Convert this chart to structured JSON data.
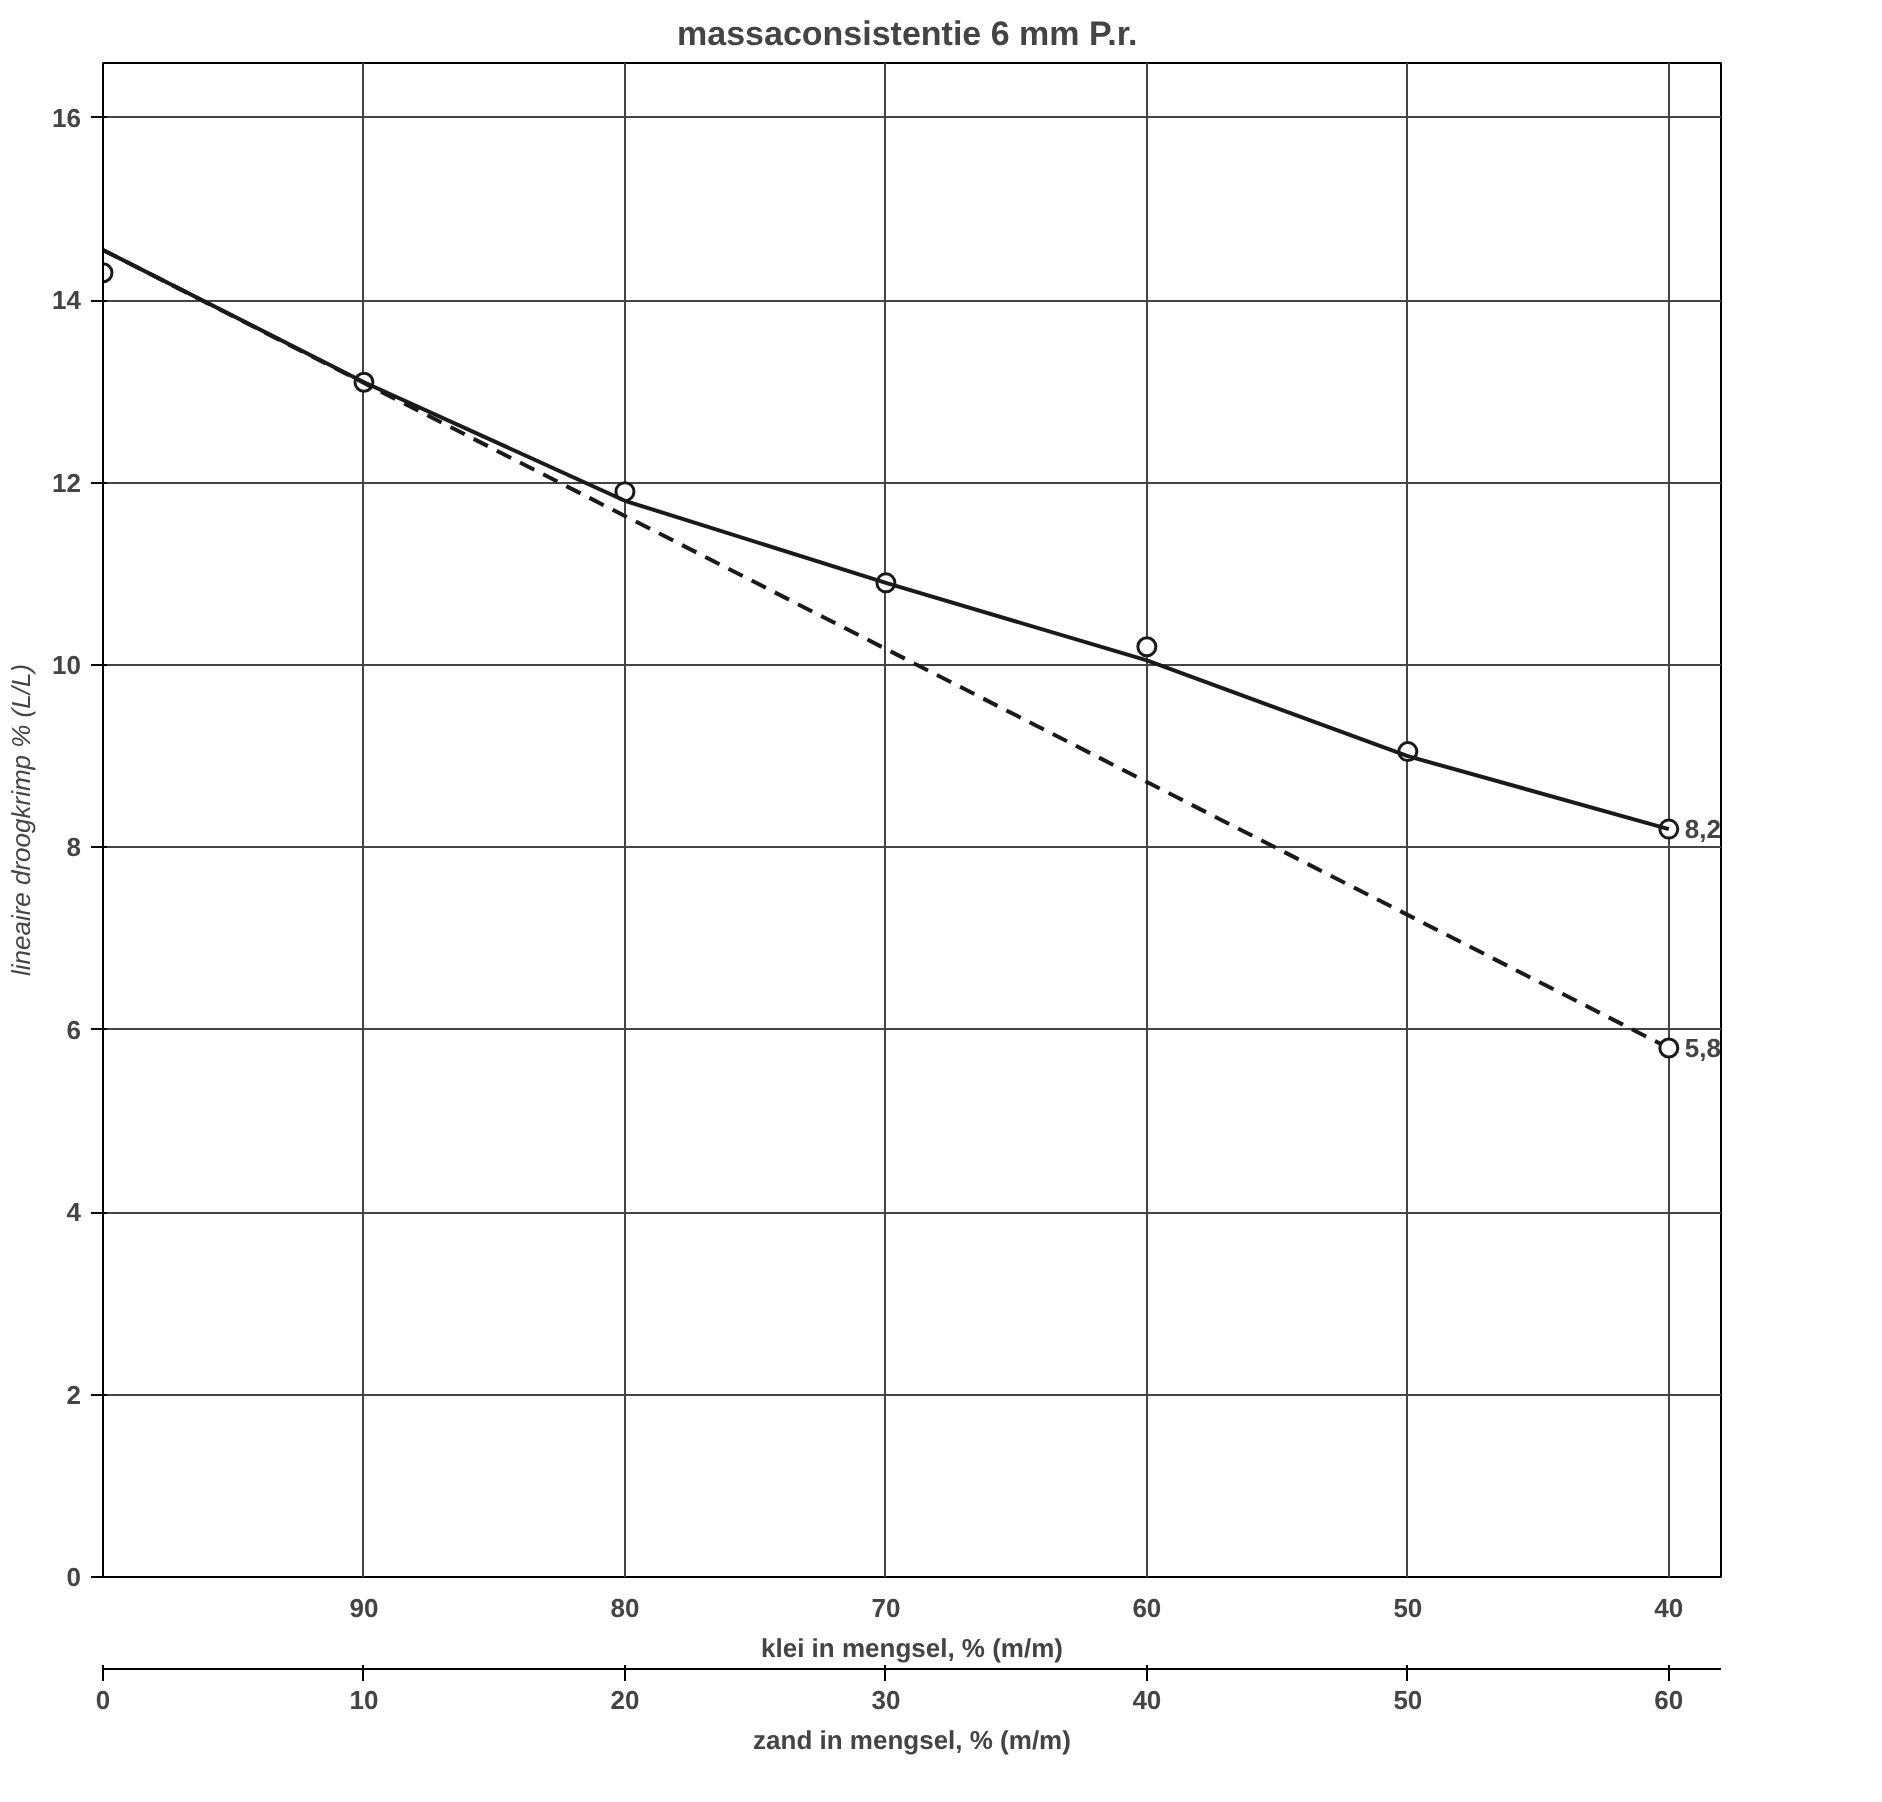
{
  "chart_data": {
    "type": "line",
    "title": "massaconsistentie  6 mm P.r.",
    "ylabel": "lineaire droogkrimp % (L/L)",
    "xlabel": "zand in mengsel, % (m/m)",
    "x2label": "klei in mengsel, % (m/m)",
    "xlim": [
      0,
      62
    ],
    "xticks": [
      0,
      10,
      20,
      30,
      40,
      50,
      60
    ],
    "x2lim": [
      100,
      38
    ],
    "x2ticks": [
      90,
      80,
      70,
      60,
      50,
      40
    ],
    "ylim": [
      0,
      16.6
    ],
    "yticks": [
      0,
      2,
      4,
      6,
      8,
      10,
      12,
      14,
      16
    ],
    "grid": true,
    "series": [
      {
        "type": "scatter",
        "marker": "circle",
        "color": "#1a1a1a",
        "x": [
          0,
          10,
          20,
          30,
          40,
          50,
          60
        ],
        "values": [
          14.3,
          13.1,
          11.9,
          10.9,
          10.2,
          9.05,
          8.2
        ]
      },
      {
        "line_style": "solid",
        "marker": "none",
        "color": "#1a1a1a",
        "x": [
          0,
          10,
          20,
          30,
          40,
          50,
          60
        ],
        "values": [
          14.55,
          13.1,
          11.8,
          10.9,
          10.05,
          9.0,
          8.2
        ]
      },
      {
        "line_style": "dashed",
        "marker": "none",
        "color": "#1a1a1a",
        "x": [
          0,
          60
        ],
        "values": [
          14.55,
          5.8
        ]
      },
      {
        "type": "scatter",
        "marker": "circle",
        "color": "#1a1a1a",
        "x": [
          60
        ],
        "values": [
          5.8
        ]
      }
    ],
    "annotations": [
      {
        "text": "8,2",
        "x": 60,
        "y": 8.2
      },
      {
        "text": "5,8",
        "x": 60,
        "y": 5.8
      }
    ]
  }
}
